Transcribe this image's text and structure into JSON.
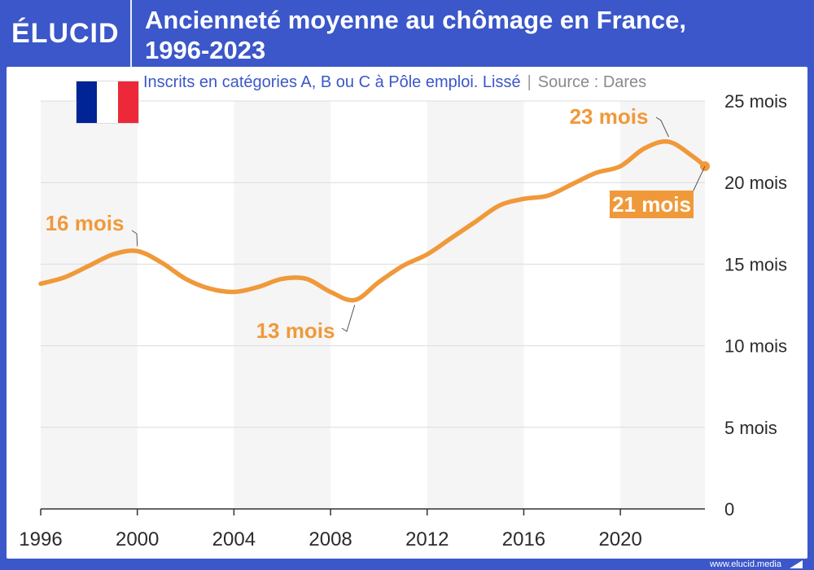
{
  "brand": {
    "logo_text": "ÉLUCID",
    "footer_url": "www.elucid.media",
    "colors": {
      "header_bg": "#3b57c9",
      "series": "#f0993a",
      "stripe": "#f5f5f5",
      "grid": "#dcdcdc"
    }
  },
  "header": {
    "title_line1": "Ancienneté moyenne au chômage en France,",
    "title_line2": "1996-2023"
  },
  "subtitle": {
    "text": "Inscrits en catégories A, B ou C à Pôle emploi. Lissé",
    "separator": "|",
    "source": "Source : Dares"
  },
  "flag": {
    "icon": "france-flag-icon",
    "colors": [
      "#002395",
      "#ffffff",
      "#ed2939"
    ]
  },
  "chart_data": {
    "type": "line",
    "title": "Ancienneté moyenne au chômage en France, 1996-2023",
    "subtitle": "Inscrits en catégories A, B ou C à Pôle emploi. Lissé",
    "source": "Source : Dares",
    "xlabel": "",
    "ylabel": "",
    "xlim": [
      1996,
      2023.5
    ],
    "ylim": [
      0,
      25
    ],
    "x_ticks": [
      1996,
      2000,
      2004,
      2008,
      2012,
      2016,
      2020
    ],
    "y_ticks": [
      {
        "value": 0,
        "label": "0"
      },
      {
        "value": 5,
        "label": "5 mois"
      },
      {
        "value": 10,
        "label": "10 mois"
      },
      {
        "value": 15,
        "label": "15 mois"
      },
      {
        "value": 20,
        "label": "20 mois"
      },
      {
        "value": 25,
        "label": "25 mois"
      }
    ],
    "grid": true,
    "series": [
      {
        "color": "#f0993a",
        "x": [
          1996,
          1997,
          1998,
          1999,
          2000,
          2001,
          2002,
          2003,
          2004,
          2005,
          2006,
          2007,
          2008,
          2009,
          2010,
          2011,
          2012,
          2013,
          2014,
          2015,
          2016,
          2017,
          2018,
          2019,
          2020,
          2021,
          2022,
          2023,
          2023.5
        ],
        "values": [
          13.8,
          14.2,
          14.9,
          15.6,
          15.8,
          15.1,
          14.1,
          13.5,
          13.3,
          13.6,
          14.1,
          14.1,
          13.3,
          12.8,
          13.9,
          14.9,
          15.6,
          16.6,
          17.6,
          18.6,
          19.0,
          19.2,
          19.9,
          20.6,
          21.0,
          22.1,
          22.5,
          21.6,
          21.0
        ]
      }
    ],
    "annotations": [
      {
        "text": "16 mois",
        "x": 2000,
        "y": 15.8,
        "style": "plain"
      },
      {
        "text": "13 mois",
        "x": 2009,
        "y": 12.8,
        "style": "plain"
      },
      {
        "text": "23 mois",
        "x": 2022,
        "y": 22.5,
        "style": "plain"
      },
      {
        "text": "21 mois",
        "x": 2023.5,
        "y": 21.0,
        "style": "box"
      }
    ]
  }
}
